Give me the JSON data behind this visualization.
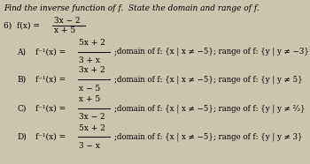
{
  "background_color": "#ccc5ae",
  "title_line": "Find the inverse function of f.  State the domain and range of f.",
  "options": [
    {
      "label": "A)",
      "inv_num": "5x + 2",
      "inv_den": "3 + x",
      "domain": "domain of f: {x | x ≠ −5}; range of f: {y | y ≠ −3}"
    },
    {
      "label": "B)",
      "inv_num": "3x + 2",
      "inv_den": "x − 5",
      "domain": "domain of f: {x | x ≠ −5}; range of f: {y | y ≠ 5}"
    },
    {
      "label": "C)",
      "inv_num": "x + 5",
      "inv_den": "3x − 2",
      "domain": "domain of f: {x | x ≠ −5}; range of f: {y | y ≠ ⅔}"
    },
    {
      "label": "D)",
      "inv_num": "5x + 2",
      "inv_den": "3 − x",
      "domain": "domain of f: {x | x ≠ −5}; range of f: {y | y ≠ 3}"
    }
  ],
  "fs_title": 6.5,
  "fs_body": 6.5,
  "fs_domain": 6.2
}
